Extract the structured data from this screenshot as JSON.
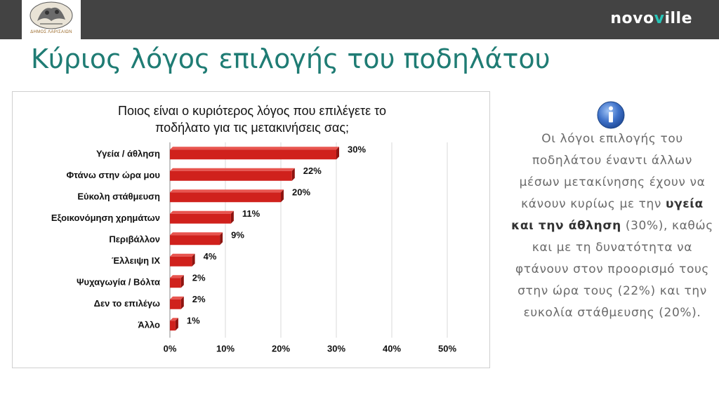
{
  "header": {
    "logo_caption": "ΔΗΜΟΣ ΛΑΡΙΣΑΙΩΝ",
    "brand_prefix": "novo",
    "brand_accent": "v",
    "brand_suffix": "ille",
    "bar_color": "#434343",
    "accent_color": "#27c5b7"
  },
  "page": {
    "title": "Κύριος λόγος επιλογής του ποδηλάτου",
    "title_color": "#1f7c74"
  },
  "sidebar": {
    "icon": "info-icon",
    "text_before": "Οι λόγοι επιλογής του ποδηλάτου έναντι άλλων μέσων μετακίνησης έχουν να κάνουν κυρίως με την",
    "text_bold": "υγεία και την άθληση",
    "text_after": "(30%), καθώς και με τη δυνατότητα να φτάνουν στον προορισμό τους στην ώρα τους (22%) και την ευκολία στάθμευσης (20%)."
  },
  "chart_data": {
    "type": "bar",
    "orientation": "horizontal",
    "title_line1": "Ποιος είναι ο κυριότερος λόγος που επιλέγετε το",
    "title_line2": "ποδήλατο για τις μετακινήσεις σας;",
    "categories": [
      "Υγεία  / άθληση",
      "Φτάνω στην ώρα μου",
      "Εύκολη στάθμευση",
      "Εξοικονόμηση χρημάτων",
      "Περιβάλλον",
      "Έλλειψη ΙΧ",
      "Ψυχαγωγία / Βόλτα",
      "Δεν το επιλέγω",
      "Άλλο"
    ],
    "values": [
      30,
      22,
      20,
      11,
      9,
      4,
      2,
      2,
      1
    ],
    "value_labels": [
      "30%",
      "22%",
      "20%",
      "11%",
      "9%",
      "4%",
      "2%",
      "2%",
      "1%"
    ],
    "xlim": [
      0,
      50
    ],
    "xticks": [
      0,
      10,
      20,
      30,
      40,
      50
    ],
    "xtick_labels": [
      "0%",
      "10%",
      "20%",
      "30%",
      "40%",
      "50%"
    ],
    "grid": true,
    "bar_color": "#d0211c"
  }
}
